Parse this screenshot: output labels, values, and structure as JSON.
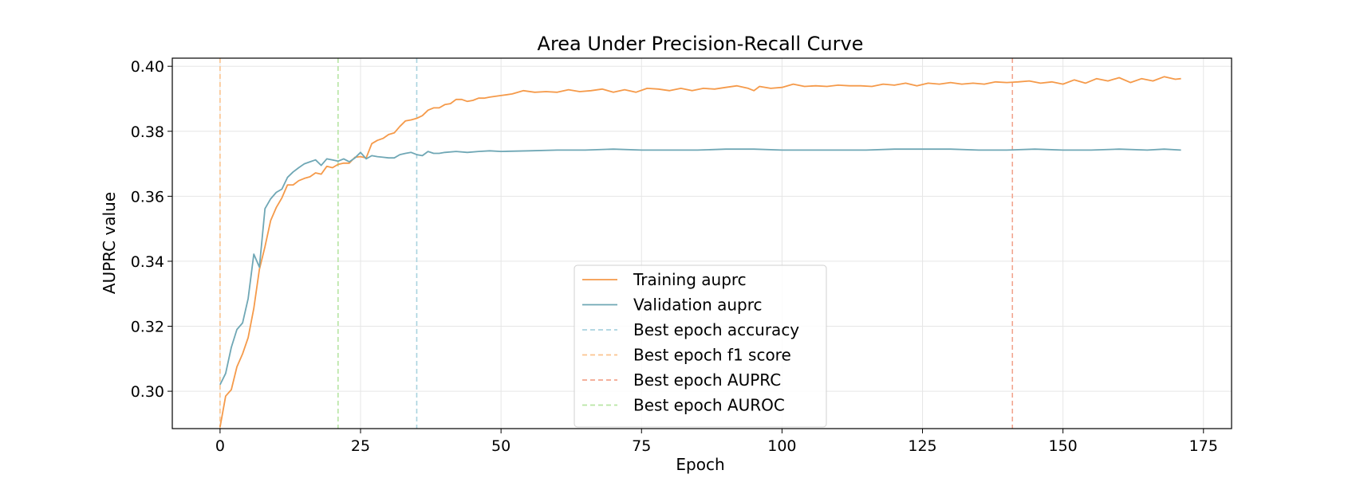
{
  "chart_data": {
    "type": "line",
    "title": "Area Under Precision-Recall Curve",
    "xlabel": "Epoch",
    "ylabel": "AUPRC value",
    "xlim": [
      -8.5,
      180
    ],
    "ylim": [
      0.2885,
      0.4025
    ],
    "xticks": [
      0,
      25,
      50,
      75,
      100,
      125,
      150,
      175
    ],
    "yticks": [
      0.3,
      0.32,
      0.34,
      0.36,
      0.38,
      0.4
    ],
    "ytick_labels": [
      "0.30",
      "0.32",
      "0.34",
      "0.36",
      "0.38",
      "0.40"
    ],
    "grid": true,
    "legend_position": "lower center",
    "series": [
      {
        "name": "Training auprc",
        "color": "#f59a4a",
        "style": "solid",
        "points": [
          [
            0,
            0.289
          ],
          [
            1,
            0.2985
          ],
          [
            2,
            0.3005
          ],
          [
            3,
            0.3075
          ],
          [
            4,
            0.3115
          ],
          [
            5,
            0.3165
          ],
          [
            6,
            0.3255
          ],
          [
            7,
            0.3375
          ],
          [
            8,
            0.3445
          ],
          [
            9,
            0.3525
          ],
          [
            10,
            0.3565
          ],
          [
            11,
            0.3595
          ],
          [
            12,
            0.3635
          ],
          [
            13,
            0.3635
          ],
          [
            14,
            0.3648
          ],
          [
            15,
            0.3655
          ],
          [
            16,
            0.366
          ],
          [
            17,
            0.3672
          ],
          [
            18,
            0.3668
          ],
          [
            19,
            0.3692
          ],
          [
            20,
            0.3688
          ],
          [
            21,
            0.3698
          ],
          [
            22,
            0.3702
          ],
          [
            23,
            0.3702
          ],
          [
            24,
            0.372
          ],
          [
            25,
            0.3722
          ],
          [
            26,
            0.3718
          ],
          [
            27,
            0.3762
          ],
          [
            28,
            0.3772
          ],
          [
            29,
            0.3778
          ],
          [
            30,
            0.379
          ],
          [
            31,
            0.3795
          ],
          [
            32,
            0.3815
          ],
          [
            33,
            0.3832
          ],
          [
            34,
            0.3835
          ],
          [
            35,
            0.384
          ],
          [
            36,
            0.3848
          ],
          [
            37,
            0.3865
          ],
          [
            38,
            0.3872
          ],
          [
            39,
            0.3872
          ],
          [
            40,
            0.3882
          ],
          [
            41,
            0.3885
          ],
          [
            42,
            0.3898
          ],
          [
            43,
            0.3898
          ],
          [
            44,
            0.3892
          ],
          [
            45,
            0.3895
          ],
          [
            46,
            0.3902
          ],
          [
            47,
            0.3902
          ],
          [
            48,
            0.3905
          ],
          [
            50,
            0.391
          ],
          [
            52,
            0.3915
          ],
          [
            54,
            0.3925
          ],
          [
            56,
            0.392
          ],
          [
            58,
            0.3922
          ],
          [
            60,
            0.392
          ],
          [
            62,
            0.3928
          ],
          [
            64,
            0.3922
          ],
          [
            66,
            0.3925
          ],
          [
            68,
            0.393
          ],
          [
            70,
            0.392
          ],
          [
            72,
            0.3928
          ],
          [
            74,
            0.392
          ],
          [
            76,
            0.3932
          ],
          [
            78,
            0.393
          ],
          [
            80,
            0.3925
          ],
          [
            82,
            0.3932
          ],
          [
            84,
            0.3925
          ],
          [
            86,
            0.3932
          ],
          [
            88,
            0.393
          ],
          [
            90,
            0.3935
          ],
          [
            92,
            0.394
          ],
          [
            94,
            0.3932
          ],
          [
            95,
            0.3925
          ],
          [
            96,
            0.3938
          ],
          [
            98,
            0.3932
          ],
          [
            100,
            0.3935
          ],
          [
            102,
            0.3945
          ],
          [
            104,
            0.3938
          ],
          [
            106,
            0.394
          ],
          [
            108,
            0.3938
          ],
          [
            110,
            0.3942
          ],
          [
            112,
            0.394
          ],
          [
            114,
            0.394
          ],
          [
            116,
            0.3938
          ],
          [
            118,
            0.3945
          ],
          [
            120,
            0.3942
          ],
          [
            122,
            0.3948
          ],
          [
            124,
            0.394
          ],
          [
            126,
            0.3948
          ],
          [
            128,
            0.3945
          ],
          [
            130,
            0.395
          ],
          [
            132,
            0.3945
          ],
          [
            134,
            0.3948
          ],
          [
            136,
            0.3945
          ],
          [
            138,
            0.3952
          ],
          [
            140,
            0.395
          ],
          [
            142,
            0.3952
          ],
          [
            144,
            0.3955
          ],
          [
            146,
            0.3948
          ],
          [
            148,
            0.3952
          ],
          [
            150,
            0.3945
          ],
          [
            152,
            0.3958
          ],
          [
            154,
            0.3948
          ],
          [
            156,
            0.3962
          ],
          [
            158,
            0.3955
          ],
          [
            160,
            0.3965
          ],
          [
            162,
            0.395
          ],
          [
            164,
            0.3962
          ],
          [
            166,
            0.3955
          ],
          [
            168,
            0.3968
          ],
          [
            170,
            0.396
          ],
          [
            171,
            0.3962
          ]
        ]
      },
      {
        "name": "Validation auprc",
        "color": "#6fa7b5",
        "style": "solid",
        "points": [
          [
            0,
            0.302
          ],
          [
            1,
            0.3055
          ],
          [
            2,
            0.3135
          ],
          [
            3,
            0.319
          ],
          [
            4,
            0.321
          ],
          [
            5,
            0.3285
          ],
          [
            6,
            0.3422
          ],
          [
            7,
            0.3382
          ],
          [
            8,
            0.3562
          ],
          [
            9,
            0.3592
          ],
          [
            10,
            0.3612
          ],
          [
            11,
            0.3622
          ],
          [
            12,
            0.3658
          ],
          [
            13,
            0.3675
          ],
          [
            14,
            0.3688
          ],
          [
            15,
            0.37
          ],
          [
            16,
            0.3706
          ],
          [
            17,
            0.3712
          ],
          [
            18,
            0.3695
          ],
          [
            19,
            0.3715
          ],
          [
            20,
            0.3712
          ],
          [
            21,
            0.3708
          ],
          [
            22,
            0.3715
          ],
          [
            23,
            0.3706
          ],
          [
            24,
            0.3718
          ],
          [
            25,
            0.3735
          ],
          [
            26,
            0.3715
          ],
          [
            27,
            0.3725
          ],
          [
            28,
            0.3722
          ],
          [
            29,
            0.372
          ],
          [
            30,
            0.3718
          ],
          [
            31,
            0.3718
          ],
          [
            32,
            0.3728
          ],
          [
            33,
            0.3732
          ],
          [
            34,
            0.3735
          ],
          [
            35,
            0.3728
          ],
          [
            36,
            0.3725
          ],
          [
            37,
            0.3738
          ],
          [
            38,
            0.3732
          ],
          [
            39,
            0.3732
          ],
          [
            40,
            0.3735
          ],
          [
            42,
            0.3738
          ],
          [
            44,
            0.3735
          ],
          [
            46,
            0.3738
          ],
          [
            48,
            0.374
          ],
          [
            50,
            0.3738
          ],
          [
            55,
            0.374
          ],
          [
            60,
            0.3742
          ],
          [
            65,
            0.3742
          ],
          [
            70,
            0.3745
          ],
          [
            75,
            0.3742
          ],
          [
            80,
            0.3742
          ],
          [
            85,
            0.3742
          ],
          [
            90,
            0.3745
          ],
          [
            95,
            0.3745
          ],
          [
            100,
            0.3742
          ],
          [
            105,
            0.3742
          ],
          [
            110,
            0.3742
          ],
          [
            115,
            0.3742
          ],
          [
            120,
            0.3745
          ],
          [
            125,
            0.3745
          ],
          [
            130,
            0.3745
          ],
          [
            135,
            0.3742
          ],
          [
            140,
            0.3742
          ],
          [
            145,
            0.3745
          ],
          [
            150,
            0.3742
          ],
          [
            155,
            0.3742
          ],
          [
            160,
            0.3745
          ],
          [
            165,
            0.3742
          ],
          [
            168,
            0.3745
          ],
          [
            171,
            0.3742
          ]
        ]
      }
    ],
    "vlines": [
      {
        "name": "Best epoch accuracy",
        "x": 35,
        "color": "#a9d3df"
      },
      {
        "name": "Best epoch f1 score",
        "x": 0,
        "color": "#fbc48e"
      },
      {
        "name": "Best epoch AUPRC",
        "x": 141,
        "color": "#f2a58f"
      },
      {
        "name": "Best epoch AUROC",
        "x": 21,
        "color": "#b7e5a3"
      }
    ]
  },
  "legend": {
    "items": [
      {
        "label": "Training auprc",
        "color": "#f59a4a",
        "dashed": false
      },
      {
        "label": "Validation auprc",
        "color": "#6fa7b5",
        "dashed": false
      },
      {
        "label": "Best epoch accuracy",
        "color": "#a9d3df",
        "dashed": true
      },
      {
        "label": "Best epoch f1 score",
        "color": "#fbc48e",
        "dashed": true
      },
      {
        "label": "Best epoch AUPRC",
        "color": "#f2a58f",
        "dashed": true
      },
      {
        "label": "Best epoch AUROC",
        "color": "#b7e5a3",
        "dashed": true
      }
    ]
  }
}
